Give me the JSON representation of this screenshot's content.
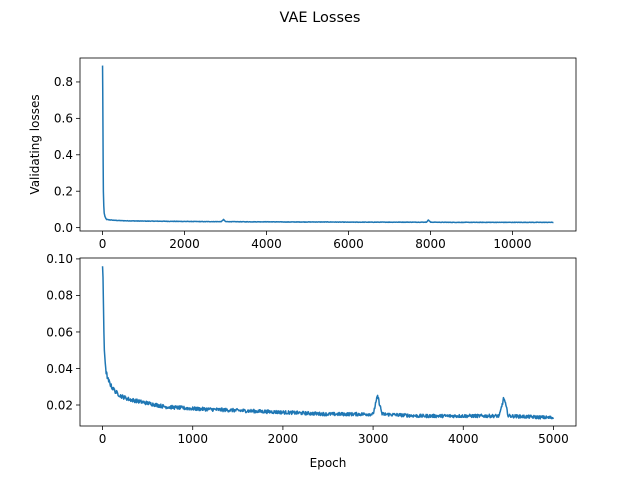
{
  "figure": {
    "suptitle": "VAE Losses",
    "series_color": "#1f77b4"
  },
  "chart_data": [
    {
      "type": "line",
      "title": "",
      "xlabel": "",
      "ylabel": "Validating losses",
      "xlim": [
        -550,
        11550
      ],
      "ylim": [
        -0.0185,
        0.9315
      ],
      "xticks": [
        0,
        2000,
        4000,
        6000,
        8000,
        10000
      ],
      "xtick_labels": [
        "0",
        "2000",
        "4000",
        "6000",
        "8000",
        "10000"
      ],
      "yticks": [
        0.0,
        0.2,
        0.4,
        0.6,
        0.8
      ],
      "ytick_labels": [
        "0.0",
        "0.2",
        "0.4",
        "0.6",
        "0.8"
      ],
      "grid": false,
      "series": [
        {
          "x": [
            0,
            5,
            10,
            15,
            20,
            30,
            40,
            60,
            80,
            100,
            150,
            200,
            300,
            500,
            700,
            1000,
            1500,
            2000,
            2500,
            2900,
            2950,
            3000,
            3500,
            4000,
            4500,
            5000,
            5500,
            6000,
            6500,
            7000,
            7500,
            7900,
            7950,
            8000,
            8500,
            9000,
            9500,
            10000,
            10500,
            10999
          ],
          "y": [
            0.89,
            0.75,
            0.55,
            0.35,
            0.2,
            0.12,
            0.08,
            0.06,
            0.05,
            0.045,
            0.043,
            0.042,
            0.04,
            0.038,
            0.037,
            0.036,
            0.035,
            0.034,
            0.033,
            0.033,
            0.045,
            0.033,
            0.032,
            0.032,
            0.031,
            0.031,
            0.031,
            0.03,
            0.03,
            0.03,
            0.03,
            0.03,
            0.042,
            0.03,
            0.029,
            0.029,
            0.029,
            0.029,
            0.029,
            0.029
          ],
          "noise": 0.004
        }
      ]
    },
    {
      "type": "line",
      "title": "",
      "xlabel": "Epoch",
      "ylabel": "",
      "xlim": [
        -250,
        5250
      ],
      "ylim": [
        0.0085,
        0.1005
      ],
      "xticks": [
        0,
        1000,
        2000,
        3000,
        4000,
        5000
      ],
      "xtick_labels": [
        "0",
        "1000",
        "2000",
        "3000",
        "4000",
        "5000"
      ],
      "yticks": [
        0.02,
        0.04,
        0.06,
        0.08,
        0.1
      ],
      "ytick_labels": [
        "0.02",
        "0.04",
        "0.06",
        "0.08",
        "0.10"
      ],
      "grid": false,
      "series": [
        {
          "x": [
            0,
            5,
            10,
            15,
            20,
            30,
            40,
            60,
            80,
            100,
            150,
            200,
            300,
            400,
            500,
            700,
            1000,
            1500,
            2000,
            2500,
            3000,
            3050,
            3100,
            3500,
            4000,
            4400,
            4450,
            4500,
            5000
          ],
          "y": [
            0.096,
            0.09,
            0.075,
            0.06,
            0.05,
            0.043,
            0.038,
            0.034,
            0.032,
            0.03,
            0.027,
            0.025,
            0.023,
            0.022,
            0.021,
            0.019,
            0.018,
            0.017,
            0.016,
            0.015,
            0.015,
            0.025,
            0.015,
            0.014,
            0.014,
            0.014,
            0.024,
            0.014,
            0.013
          ],
          "noise": 0.0028
        }
      ]
    }
  ]
}
